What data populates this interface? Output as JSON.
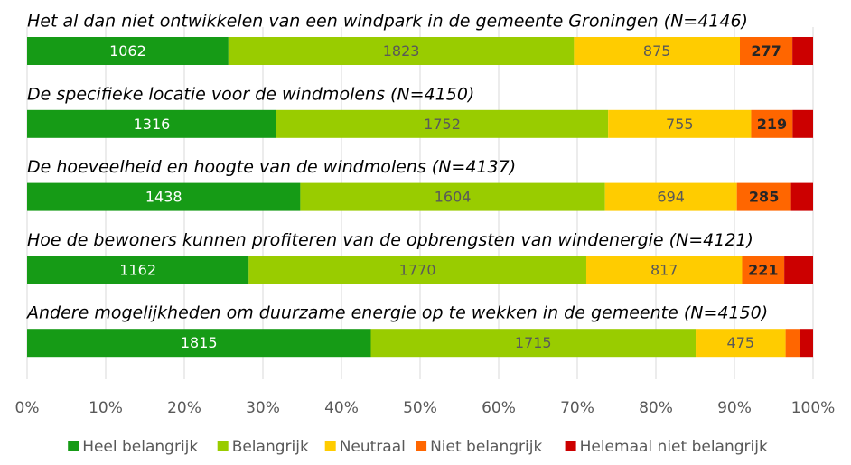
{
  "chart_data": {
    "type": "bar",
    "orientation": "horizontal",
    "stacked": "percent",
    "categories": [
      "Het al dan niet ontwikkelen van een windpark in de gemeente Groningen (N=4146)",
      "De specifieke locatie voor de windmolens (N=4150)",
      "De hoeveelheid en hoogte van de windmolens (N=4137)",
      "Hoe de bewoners kunnen profiteren van de opbrengsten van windenergie (N=4121)",
      "Andere mogelijkheden om duurzame energie op te wekken in de gemeente (N=4150)"
    ],
    "series": [
      {
        "name": "Heel belangrijk",
        "color": "#169b16",
        "values": [
          1062,
          1316,
          1438,
          1162,
          1815
        ]
      },
      {
        "name": "Belangrijk",
        "color": "#99cc00",
        "values": [
          1823,
          1752,
          1604,
          1770,
          1715
        ]
      },
      {
        "name": "Neutraal",
        "color": "#ffcc00",
        "values": [
          875,
          755,
          694,
          817,
          475
        ]
      },
      {
        "name": "Niet belangrijk",
        "color": "#ff6600",
        "values": [
          277,
          219,
          285,
          221,
          78
        ]
      },
      {
        "name": "Helemaal niet belangrijk",
        "color": "#cc0000",
        "values": [
          109,
          108,
          116,
          151,
          67
        ]
      }
    ],
    "xlim": [
      0,
      100
    ],
    "xticks": [
      {
        "value": 0,
        "label": "0%"
      },
      {
        "value": 10,
        "label": "10%"
      },
      {
        "value": 20,
        "label": "20%"
      },
      {
        "value": 30,
        "label": "30%"
      },
      {
        "value": 40,
        "label": "40%"
      },
      {
        "value": 50,
        "label": "50%"
      },
      {
        "value": 60,
        "label": "60%"
      },
      {
        "value": 70,
        "label": "70%"
      },
      {
        "value": 80,
        "label": "80%"
      },
      {
        "value": 90,
        "label": "90%"
      },
      {
        "value": 100,
        "label": "100%"
      }
    ],
    "grid": true,
    "legend": "bottom"
  }
}
